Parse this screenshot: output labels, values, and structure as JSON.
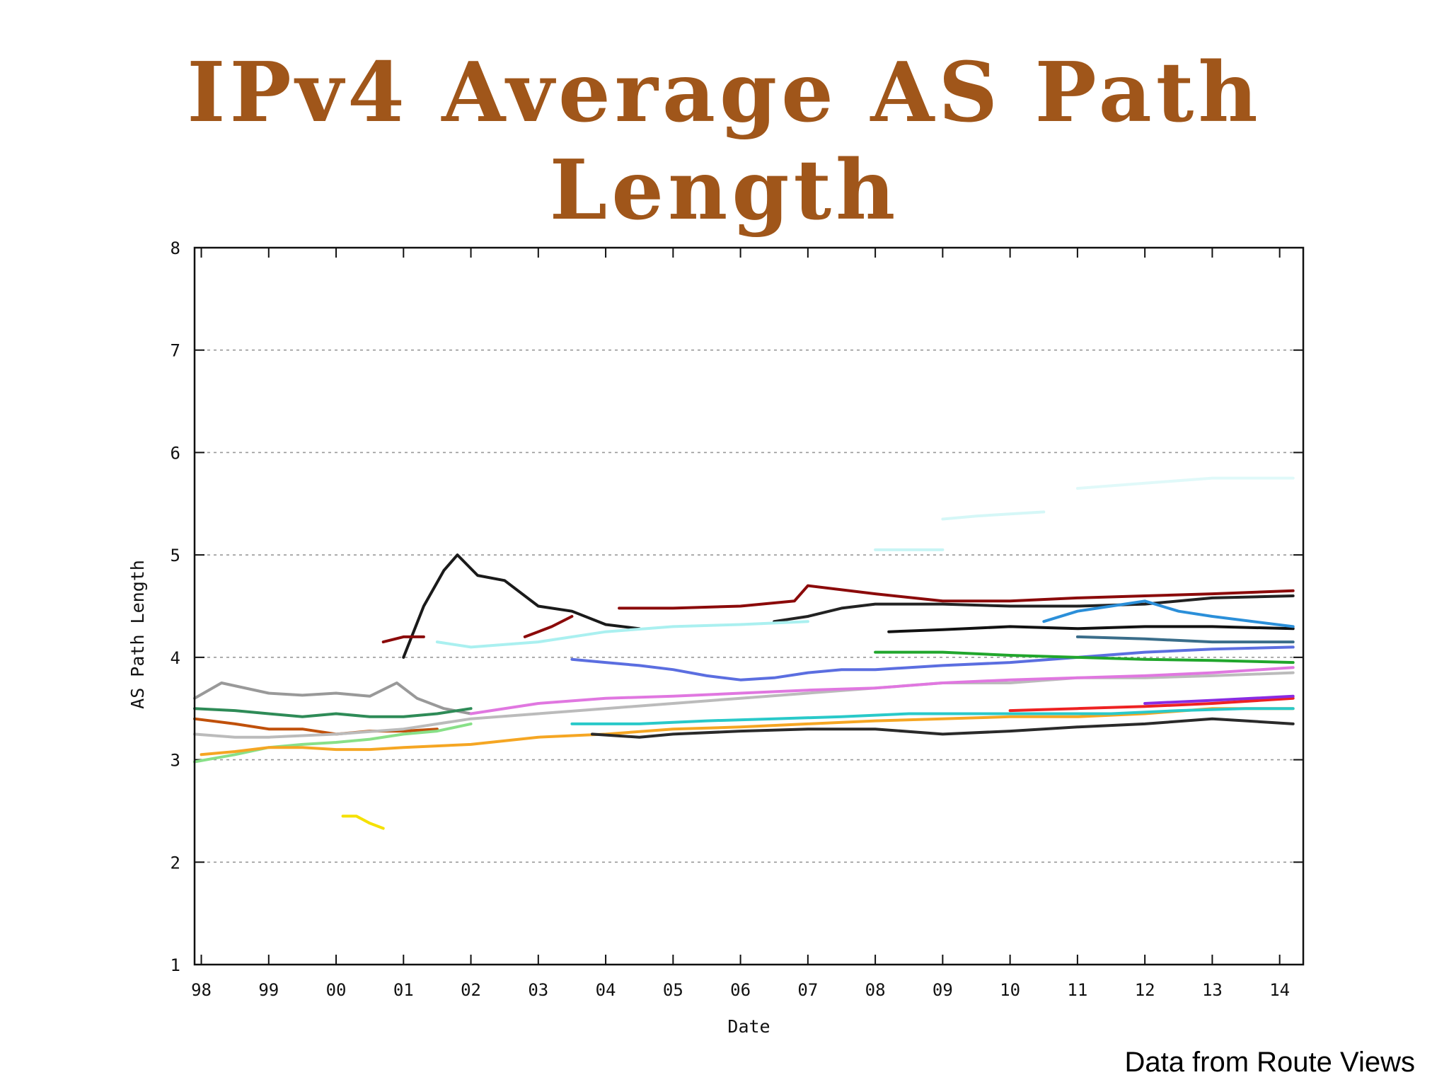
{
  "title": {
    "line1": "IPv4 Average AS Path",
    "line2": "Length"
  },
  "source_note": "Data from Route Views",
  "colors": {
    "title": "#a0561a",
    "axis": "#111111",
    "grid": "#999999"
  },
  "chart_data": {
    "type": "line",
    "xlabel": "Date",
    "ylabel": "AS Path Length",
    "xlim": [
      1997.9,
      2014.35
    ],
    "ylim": [
      1,
      8
    ],
    "x_ticks": [
      "98",
      "99",
      "00",
      "01",
      "02",
      "03",
      "04",
      "05",
      "06",
      "07",
      "08",
      "09",
      "10",
      "11",
      "12",
      "13",
      "14"
    ],
    "y_ticks": [
      "1",
      "2",
      "3",
      "4",
      "5",
      "6",
      "7",
      "8"
    ],
    "grid": "horizontal-dashed",
    "series": [
      {
        "color": "#999999",
        "x": [
          1997.9,
          1998.3,
          1999.0,
          1999.5,
          2000.0,
          2000.5,
          2000.9,
          2001.2,
          2001.6,
          2002.0
        ],
        "y": [
          3.6,
          3.75,
          3.65,
          3.63,
          3.65,
          3.62,
          3.75,
          3.6,
          3.5,
          3.45
        ]
      },
      {
        "color": "#1a1a1a",
        "x": [
          2001.0,
          2001.3,
          2001.6,
          2001.8,
          2002.1,
          2002.5,
          2003.0,
          2003.5,
          2004.0,
          2004.5
        ],
        "y": [
          4.0,
          4.5,
          4.85,
          5.0,
          4.8,
          4.75,
          4.5,
          4.45,
          4.32,
          4.28
        ]
      },
      {
        "color": "#8b0a0a",
        "x": [
          2000.7,
          2001.0,
          2001.3
        ],
        "y": [
          4.15,
          4.2,
          4.2
        ]
      },
      {
        "color": "#8b0a0a",
        "x": [
          2002.8,
          2003.2,
          2003.5
        ],
        "y": [
          4.2,
          4.3,
          4.4
        ]
      },
      {
        "color": "#8b0a0a",
        "x": [
          2004.2,
          2005.0,
          2006.0,
          2006.8,
          2007.0,
          2008.0,
          2009.0,
          2010.0,
          2011.0,
          2012.0,
          2013.0,
          2014.2
        ],
        "y": [
          4.48,
          4.48,
          4.5,
          4.55,
          4.7,
          4.62,
          4.55,
          4.55,
          4.58,
          4.6,
          4.62,
          4.65
        ]
      },
      {
        "color": "#222222",
        "x": [
          2006.5,
          2007.0,
          2007.5,
          2008.0,
          2009.0,
          2010.0,
          2011.0,
          2012.0,
          2013.0,
          2014.2
        ],
        "y": [
          4.35,
          4.4,
          4.48,
          4.52,
          4.52,
          4.5,
          4.5,
          4.52,
          4.58,
          4.6
        ]
      },
      {
        "color": "#111111",
        "x": [
          2008.2,
          2009.0,
          2010.0,
          2011.0,
          2012.0,
          2013.0,
          2014.2
        ],
        "y": [
          4.25,
          4.27,
          4.3,
          4.28,
          4.3,
          4.3,
          4.28
        ]
      },
      {
        "color": "#2b8fd9",
        "x": [
          2010.5,
          2011.0,
          2011.5,
          2012.0,
          2012.5,
          2013.0,
          2014.2
        ],
        "y": [
          4.35,
          4.45,
          4.5,
          4.55,
          4.45,
          4.4,
          4.3
        ]
      },
      {
        "color": "#5b6ee0",
        "x": [
          2003.5,
          2004.0,
          2004.5,
          2005.0,
          2005.5,
          2006.0,
          2006.5,
          2007.0,
          2007.5,
          2008.0,
          2009.0,
          2010.0,
          2011.0,
          2012.0,
          2013.0,
          2014.2
        ],
        "y": [
          3.98,
          3.95,
          3.92,
          3.88,
          3.82,
          3.78,
          3.8,
          3.85,
          3.88,
          3.88,
          3.92,
          3.95,
          4.0,
          4.05,
          4.08,
          4.1
        ]
      },
      {
        "color": "#21a62c",
        "x": [
          2008.0,
          2009.0,
          2010.0,
          2011.0,
          2012.0,
          2013.0,
          2014.2
        ],
        "y": [
          4.05,
          4.05,
          4.02,
          4.0,
          3.98,
          3.97,
          3.95
        ]
      },
      {
        "color": "#2e8b57",
        "x": [
          1997.9,
          1998.5,
          1999.0,
          1999.5,
          2000.0,
          2000.5,
          2001.0,
          2001.5,
          2002.0
        ],
        "y": [
          3.5,
          3.48,
          3.45,
          3.42,
          3.45,
          3.42,
          3.42,
          3.45,
          3.5
        ]
      },
      {
        "color": "#c0500a",
        "x": [
          1997.9,
          1998.5,
          1999.0,
          1999.5,
          2000.0,
          2000.5,
          2001.0,
          2001.5
        ],
        "y": [
          3.4,
          3.35,
          3.3,
          3.3,
          3.25,
          3.28,
          3.28,
          3.3
        ]
      },
      {
        "color": "#bbbbbb",
        "x": [
          1997.9,
          1998.5,
          1999.0,
          2000.0,
          2001.0,
          2002.0,
          2003.0,
          2004.0,
          2005.0,
          2006.0,
          2007.0,
          2008.0,
          2009.0,
          2010.0,
          2011.0,
          2012.0,
          2013.0,
          2014.2
        ],
        "y": [
          3.25,
          3.22,
          3.22,
          3.25,
          3.3,
          3.4,
          3.45,
          3.5,
          3.55,
          3.6,
          3.65,
          3.7,
          3.75,
          3.75,
          3.8,
          3.8,
          3.82,
          3.85
        ]
      },
      {
        "color": "#88e088",
        "x": [
          1997.9,
          1998.5,
          1999.0,
          1999.5,
          2000.0,
          2000.5,
          2001.0,
          2001.5,
          2002.0
        ],
        "y": [
          2.98,
          3.05,
          3.12,
          3.15,
          3.17,
          3.2,
          3.25,
          3.28,
          3.35
        ]
      },
      {
        "color": "#f5a623",
        "x": [
          1998.0,
          1998.5,
          1999.0,
          1999.5,
          2000.0,
          2000.5,
          2001.0,
          2002.0,
          2003.0,
          2004.0,
          2005.0,
          2006.0,
          2007.0,
          2008.0,
          2009.0,
          2010.0,
          2011.0,
          2012.0,
          2013.0,
          2014.2
        ],
        "y": [
          3.05,
          3.08,
          3.12,
          3.12,
          3.1,
          3.1,
          3.12,
          3.15,
          3.22,
          3.25,
          3.3,
          3.32,
          3.35,
          3.38,
          3.4,
          3.42,
          3.42,
          3.45,
          3.5,
          3.5
        ]
      },
      {
        "color": "#f5e100",
        "x": [
          2000.1,
          2000.3,
          2000.5,
          2000.7
        ],
        "y": [
          2.45,
          2.45,
          2.38,
          2.33
        ]
      },
      {
        "color": "#e077e0",
        "x": [
          2002.0,
          2003.0,
          2004.0,
          2005.0,
          2006.0,
          2007.0,
          2008.0,
          2009.0,
          2010.0,
          2011.0,
          2012.0,
          2013.0,
          2014.2
        ],
        "y": [
          3.45,
          3.55,
          3.6,
          3.62,
          3.65,
          3.68,
          3.7,
          3.75,
          3.78,
          3.8,
          3.82,
          3.85,
          3.9
        ]
      },
      {
        "color": "#29c9c9",
        "x": [
          2003.5,
          2004.5,
          2005.5,
          2006.5,
          2007.5,
          2008.5,
          2009.5,
          2010.5,
          2011.5,
          2012.5,
          2013.5,
          2014.2
        ],
        "y": [
          3.35,
          3.35,
          3.38,
          3.4,
          3.42,
          3.45,
          3.45,
          3.45,
          3.45,
          3.48,
          3.5,
          3.5
        ]
      },
      {
        "color": "#2a2a2a",
        "x": [
          2003.8,
          2004.5,
          2005.0,
          2006.0,
          2007.0,
          2008.0,
          2009.0,
          2010.0,
          2011.0,
          2012.0,
          2013.0,
          2013.5,
          2014.2
        ],
        "y": [
          3.25,
          3.22,
          3.25,
          3.28,
          3.3,
          3.3,
          3.25,
          3.28,
          3.32,
          3.35,
          3.4,
          3.38,
          3.35
        ]
      },
      {
        "color": "#3a6d8a",
        "x": [
          2011.0,
          2012.0,
          2013.0,
          2014.2
        ],
        "y": [
          4.2,
          4.18,
          4.15,
          4.15
        ]
      },
      {
        "color": "#ee2222",
        "x": [
          2010.0,
          2011.0,
          2012.0,
          2013.0,
          2014.2
        ],
        "y": [
          3.48,
          3.5,
          3.52,
          3.55,
          3.6
        ]
      },
      {
        "color": "#8a2be2",
        "x": [
          2012.0,
          2013.0,
          2014.2
        ],
        "y": [
          3.55,
          3.58,
          3.62
        ]
      },
      {
        "color": "#aaf0f0",
        "x": [
          2001.5,
          2002.0,
          2003.0,
          2004.0,
          2005.0,
          2006.0,
          2007.0
        ],
        "y": [
          4.15,
          4.1,
          4.15,
          4.25,
          4.3,
          4.32,
          4.35
        ]
      },
      {
        "color": "#c8f5f5",
        "x": [
          2008.0,
          2008.5,
          2009.0
        ],
        "y": [
          5.05,
          5.05,
          5.05
        ]
      },
      {
        "color": "#d5f7f7",
        "x": [
          2009.0,
          2009.5,
          2010.0,
          2010.5
        ],
        "y": [
          5.35,
          5.38,
          5.4,
          5.42
        ]
      },
      {
        "color": "#e0f9f9",
        "x": [
          2011.0,
          2012.0,
          2013.0,
          2014.2
        ],
        "y": [
          5.65,
          5.7,
          5.75,
          5.75
        ]
      }
    ]
  }
}
